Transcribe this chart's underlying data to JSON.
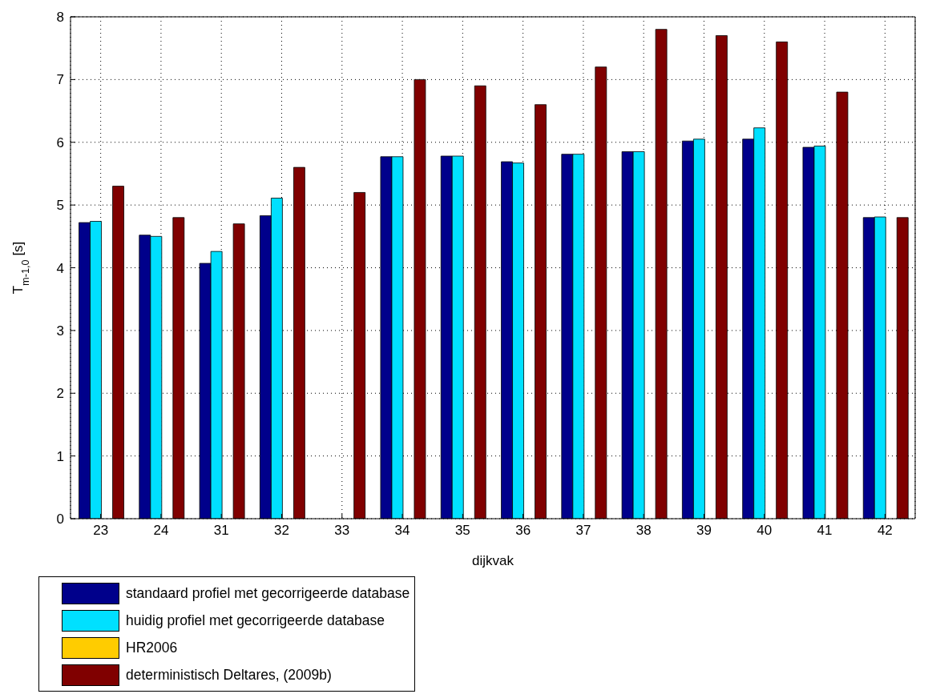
{
  "chart_data": {
    "type": "bar",
    "categories": [
      "23",
      "24",
      "31",
      "32",
      "33",
      "34",
      "35",
      "36",
      "37",
      "38",
      "39",
      "40",
      "41",
      "42"
    ],
    "series": [
      {
        "name": "standaard profiel met gecorrigeerde database",
        "color": "#00008b",
        "values": [
          4.72,
          4.52,
          4.07,
          4.83,
          null,
          5.77,
          5.78,
          5.69,
          5.81,
          5.85,
          6.02,
          6.05,
          5.92,
          4.8
        ]
      },
      {
        "name": "huidig profiel met gecorrigeerde database",
        "color": "#00e0ff",
        "values": [
          4.74,
          4.5,
          4.26,
          5.11,
          null,
          5.77,
          5.78,
          5.67,
          5.81,
          5.85,
          6.05,
          6.23,
          5.94,
          4.81
        ]
      },
      {
        "name": "HR2006",
        "color": "#ffcc00",
        "values": [
          null,
          null,
          null,
          null,
          null,
          null,
          null,
          null,
          null,
          null,
          null,
          null,
          null,
          null
        ]
      },
      {
        "name": "deterministisch Deltares, (2009b)",
        "color": "#800000",
        "values": [
          5.3,
          4.8,
          4.7,
          5.6,
          5.2,
          7.0,
          6.9,
          6.6,
          7.2,
          7.8,
          7.7,
          7.6,
          6.8,
          4.8
        ]
      }
    ],
    "xlabel": "dijkvak",
    "ylabel": "T$_{m-1,0}$ [s]",
    "ylim": [
      0,
      8
    ],
    "yticks": [
      0,
      1,
      2,
      3,
      4,
      5,
      6,
      7,
      8
    ],
    "grid": true,
    "legend": "bottom left"
  }
}
